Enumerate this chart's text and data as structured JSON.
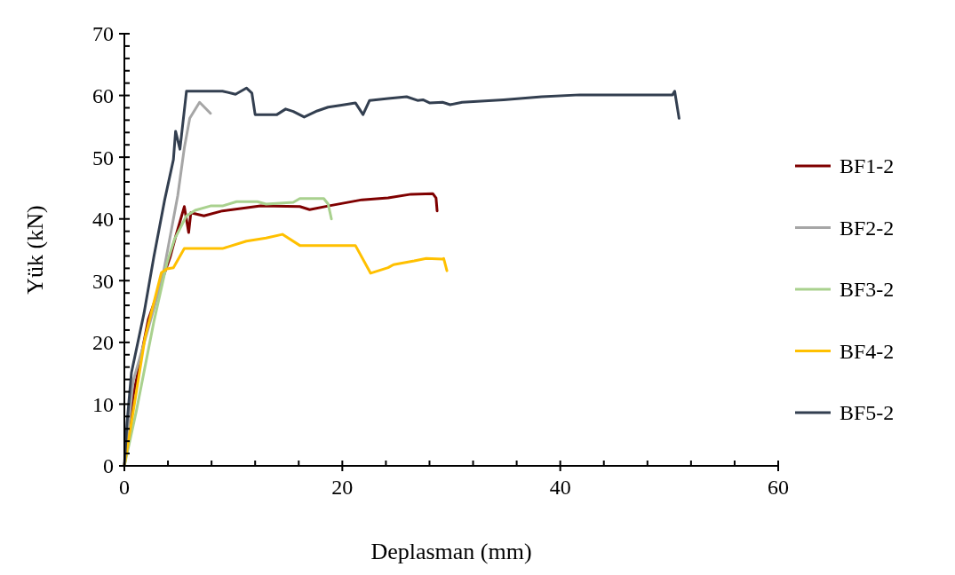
{
  "chart_data": {
    "type": "line",
    "xlabel": "Deplasman  (mm)",
    "ylabel": "Yük  (kN)",
    "xlim": [
      0,
      60
    ],
    "ylim": [
      0,
      70
    ],
    "xticks": [
      0,
      {
        "value": 4,
        "label": null
      },
      {
        "value": 8,
        "label": null
      },
      {
        "value": 12,
        "label": null
      },
      {
        "value": 16,
        "label": null
      },
      20,
      {
        "value": 24,
        "label": null
      },
      {
        "value": 28,
        "label": null
      },
      {
        "value": 32,
        "label": null
      },
      {
        "value": 36,
        "label": null
      },
      40,
      {
        "value": 44,
        "label": null
      },
      {
        "value": 48,
        "label": null
      },
      {
        "value": 52,
        "label": null
      },
      {
        "value": 56,
        "label": null
      },
      60
    ],
    "yticks": [
      0,
      {
        "value": 2,
        "label": null
      },
      {
        "value": 4,
        "label": null
      },
      {
        "value": 6,
        "label": null
      },
      {
        "value": 8,
        "label": null
      },
      10,
      {
        "value": 12,
        "label": null
      },
      {
        "value": 14,
        "label": null
      },
      {
        "value": 16,
        "label": null
      },
      {
        "value": 18,
        "label": null
      },
      20,
      {
        "value": 22,
        "label": null
      },
      {
        "value": 24,
        "label": null
      },
      {
        "value": 26,
        "label": null
      },
      {
        "value": 28,
        "label": null
      },
      30,
      {
        "value": 32,
        "label": null
      },
      {
        "value": 34,
        "label": null
      },
      {
        "value": 36,
        "label": null
      },
      {
        "value": 38,
        "label": null
      },
      40,
      {
        "value": 42,
        "label": null
      },
      {
        "value": 44,
        "label": null
      },
      {
        "value": 46,
        "label": null
      },
      {
        "value": 48,
        "label": null
      },
      50,
      {
        "value": 52,
        "label": null
      },
      {
        "value": 54,
        "label": null
      },
      {
        "value": 56,
        "label": null
      },
      {
        "value": 58,
        "label": null
      },
      60,
      {
        "value": 62,
        "label": null
      },
      {
        "value": 64,
        "label": null
      },
      {
        "value": 66,
        "label": null
      },
      {
        "value": 68,
        "label": null
      },
      70
    ],
    "grid": false,
    "legend": "right",
    "marker": "none",
    "line_style": "solid",
    "series": [
      {
        "name": "BF1-2",
        "color": "#7f0000",
        "x": [
          0,
          0.8,
          2.2,
          4.2,
          4.7,
          5.5,
          5.9,
          6.1,
          7.3,
          9.0,
          12.5,
          16.1,
          17.0,
          18.7,
          21.8,
          24.2,
          26.3,
          28.3,
          28.6,
          28.7
        ],
        "values": [
          0,
          11.2,
          23.7,
          33.8,
          37.1,
          42.0,
          37.8,
          41.0,
          40.5,
          41.3,
          42.1,
          42.0,
          41.5,
          42.1,
          43.1,
          43.4,
          44.0,
          44.1,
          43.4,
          41.3
        ]
      },
      {
        "name": "BF2-2",
        "color": "#a6a6a6",
        "x": [
          0,
          0.8,
          2.2,
          3.5,
          4.9,
          5.5,
          6.0,
          6.9,
          7.9
        ],
        "values": [
          0,
          13.7,
          22.3,
          30.5,
          43.8,
          51.5,
          56.3,
          58.9,
          57.1
        ]
      },
      {
        "name": "BF3-2",
        "color": "#a9d18e",
        "x": [
          0,
          1.1,
          2.7,
          3.9,
          4.6,
          5.7,
          6.5,
          7.9,
          9.0,
          10.3,
          12.2,
          13.0,
          15.5,
          16.1,
          18.3,
          18.7,
          19.0
        ],
        "values": [
          0,
          8.9,
          23.3,
          32.8,
          36.7,
          40.5,
          41.4,
          42.1,
          42.1,
          42.8,
          42.8,
          42.4,
          42.7,
          43.3,
          43.3,
          42.4,
          40.0
        ]
      },
      {
        "name": "BF4-2",
        "color": "#ffc000",
        "x": [
          0,
          0.6,
          1.9,
          3.4,
          3.9,
          4.5,
          5.5,
          9.0,
          11.2,
          13.0,
          14.5,
          16.1,
          21.2,
          22.6,
          24.2,
          24.7,
          26.6,
          27.7,
          29.2,
          29.3,
          29.6
        ],
        "values": [
          0,
          6.5,
          20.8,
          31.3,
          31.9,
          32.1,
          35.2,
          35.2,
          36.4,
          36.9,
          37.5,
          35.7,
          35.7,
          31.2,
          32.1,
          32.6,
          33.2,
          33.6,
          33.5,
          33.6,
          31.6
        ]
      },
      {
        "name": "BF5-2",
        "color": "#333f50",
        "x": [
          0,
          0.24,
          0.65,
          1.8,
          2.7,
          3.7,
          4.5,
          4.7,
          5.1,
          5.7,
          9.0,
          10.2,
          11.2,
          11.7,
          12.0,
          14.0,
          14.8,
          15.5,
          16.5,
          17.7,
          18.7,
          19.8,
          21.2,
          21.9,
          22.5,
          24.2,
          25.9,
          26.9,
          27.4,
          28.0,
          29.2,
          29.9,
          31.0,
          34.8,
          38.3,
          41.8,
          50.3,
          50.5,
          50.9
        ],
        "values": [
          0,
          6.9,
          15.1,
          24.7,
          33.8,
          43.1,
          49.6,
          54.2,
          51.3,
          60.7,
          60.7,
          60.2,
          61.2,
          60.4,
          56.9,
          56.9,
          57.8,
          57.4,
          56.5,
          57.5,
          58.1,
          58.4,
          58.8,
          56.9,
          59.2,
          59.5,
          59.8,
          59.2,
          59.3,
          58.8,
          58.9,
          58.5,
          58.9,
          59.3,
          59.8,
          60.1,
          60.1,
          60.7,
          56.3
        ]
      }
    ]
  }
}
